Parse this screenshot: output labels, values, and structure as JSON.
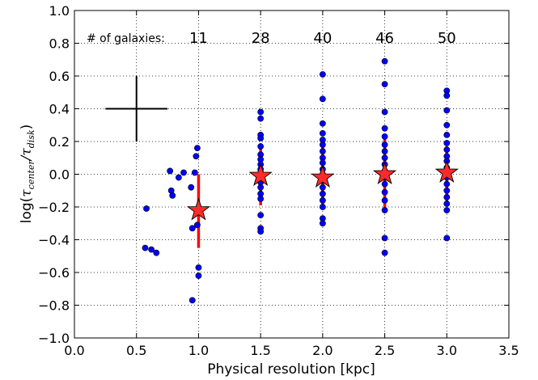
{
  "chart_data": {
    "type": "scatter",
    "xlabel": "Physical resolution [kpc]",
    "ylabel": {
      "prefix": "log(",
      "tau1": "τ",
      "sub1": "center",
      "slash": "/",
      "tau2": "τ",
      "sub2": "disk",
      "suffix": ")"
    },
    "xlim": [
      0.0,
      3.5
    ],
    "ylim": [
      -1.0,
      1.0
    ],
    "x_ticks": [
      "0.0",
      "0.5",
      "1.0",
      "1.5",
      "2.0",
      "2.5",
      "3.0",
      "3.5"
    ],
    "y_ticks": [
      "−1.0",
      "−0.8",
      "−0.6",
      "−0.4",
      "−0.2",
      "0.0",
      "0.2",
      "0.4",
      "0.6",
      "0.8",
      "1.0"
    ],
    "grid": true,
    "grid_style": "dotted",
    "galaxy_count_label": "# of galaxies:",
    "galaxy_counts": [
      {
        "x": 1.0,
        "count": "11"
      },
      {
        "x": 1.5,
        "count": "28"
      },
      {
        "x": 2.0,
        "count": "40"
      },
      {
        "x": 2.5,
        "count": "46"
      },
      {
        "x": 3.0,
        "count": "50"
      }
    ],
    "individual_points": [
      {
        "x": 0.58,
        "y": -0.21
      },
      {
        "x": 0.57,
        "y": -0.45
      },
      {
        "x": 0.62,
        "y": -0.46
      },
      {
        "x": 0.66,
        "y": -0.48
      },
      {
        "x": 0.77,
        "y": 0.02
      },
      {
        "x": 0.78,
        "y": -0.1
      },
      {
        "x": 0.79,
        "y": -0.13
      },
      {
        "x": 0.84,
        "y": -0.02
      },
      {
        "x": 0.88,
        "y": 0.01
      },
      {
        "x": 0.94,
        "y": -0.08
      },
      {
        "x": 0.95,
        "y": -0.33
      },
      {
        "x": 0.95,
        "y": -0.77
      },
      {
        "x": 0.97,
        "y": 0.01
      },
      {
        "x": 0.98,
        "y": 0.11
      },
      {
        "x": 0.99,
        "y": 0.16
      },
      {
        "x": 0.99,
        "y": -0.31
      },
      {
        "x": 1.0,
        "y": -0.57
      },
      {
        "x": 1.0,
        "y": -0.62
      },
      {
        "x": 1.5,
        "y": 0.38
      },
      {
        "x": 1.5,
        "y": 0.34
      },
      {
        "x": 1.5,
        "y": 0.24
      },
      {
        "x": 1.5,
        "y": 0.22
      },
      {
        "x": 1.5,
        "y": 0.17
      },
      {
        "x": 1.5,
        "y": 0.12
      },
      {
        "x": 1.5,
        "y": 0.09
      },
      {
        "x": 1.5,
        "y": 0.06
      },
      {
        "x": 1.5,
        "y": 0.03
      },
      {
        "x": 1.5,
        "y": 0.01
      },
      {
        "x": 1.5,
        "y": -0.02
      },
      {
        "x": 1.5,
        "y": -0.05
      },
      {
        "x": 1.5,
        "y": -0.08
      },
      {
        "x": 1.5,
        "y": -0.12
      },
      {
        "x": 1.5,
        "y": -0.15
      },
      {
        "x": 1.5,
        "y": -0.25
      },
      {
        "x": 1.5,
        "y": -0.33
      },
      {
        "x": 1.5,
        "y": -0.35
      },
      {
        "x": 2.0,
        "y": 0.61
      },
      {
        "x": 2.0,
        "y": 0.46
      },
      {
        "x": 2.0,
        "y": 0.31
      },
      {
        "x": 2.0,
        "y": 0.25
      },
      {
        "x": 2.0,
        "y": 0.21
      },
      {
        "x": 2.0,
        "y": 0.18
      },
      {
        "x": 2.0,
        "y": 0.14
      },
      {
        "x": 2.0,
        "y": 0.1
      },
      {
        "x": 2.0,
        "y": 0.07
      },
      {
        "x": 2.0,
        "y": 0.03
      },
      {
        "x": 2.0,
        "y": 0.0
      },
      {
        "x": 2.0,
        "y": -0.04
      },
      {
        "x": 2.0,
        "y": -0.08
      },
      {
        "x": 2.0,
        "y": -0.12
      },
      {
        "x": 2.0,
        "y": -0.16
      },
      {
        "x": 2.0,
        "y": -0.2
      },
      {
        "x": 2.0,
        "y": -0.27
      },
      {
        "x": 2.0,
        "y": -0.3
      },
      {
        "x": 2.5,
        "y": 0.69
      },
      {
        "x": 2.5,
        "y": 0.55
      },
      {
        "x": 2.5,
        "y": 0.38
      },
      {
        "x": 2.5,
        "y": 0.28
      },
      {
        "x": 2.5,
        "y": 0.23
      },
      {
        "x": 2.5,
        "y": 0.18
      },
      {
        "x": 2.5,
        "y": 0.14
      },
      {
        "x": 2.5,
        "y": 0.1
      },
      {
        "x": 2.5,
        "y": 0.06
      },
      {
        "x": 2.5,
        "y": 0.02
      },
      {
        "x": 2.5,
        "y": -0.02
      },
      {
        "x": 2.5,
        "y": -0.06
      },
      {
        "x": 2.5,
        "y": -0.11
      },
      {
        "x": 2.5,
        "y": -0.16
      },
      {
        "x": 2.5,
        "y": -0.22
      },
      {
        "x": 2.5,
        "y": -0.39
      },
      {
        "x": 2.5,
        "y": -0.48
      },
      {
        "x": 3.0,
        "y": 0.51
      },
      {
        "x": 3.0,
        "y": 0.48
      },
      {
        "x": 3.0,
        "y": 0.39
      },
      {
        "x": 3.0,
        "y": 0.3
      },
      {
        "x": 3.0,
        "y": 0.24
      },
      {
        "x": 3.0,
        "y": 0.19
      },
      {
        "x": 3.0,
        "y": 0.15
      },
      {
        "x": 3.0,
        "y": 0.11
      },
      {
        "x": 3.0,
        "y": 0.08
      },
      {
        "x": 3.0,
        "y": 0.04
      },
      {
        "x": 3.0,
        "y": 0.01
      },
      {
        "x": 3.0,
        "y": -0.02
      },
      {
        "x": 3.0,
        "y": -0.06
      },
      {
        "x": 3.0,
        "y": -0.1
      },
      {
        "x": 3.0,
        "y": -0.14
      },
      {
        "x": 3.0,
        "y": -0.18
      },
      {
        "x": 3.0,
        "y": -0.22
      },
      {
        "x": 3.0,
        "y": -0.39
      }
    ],
    "medians": [
      {
        "x": 1.0,
        "y": -0.22,
        "err_low": -0.45,
        "err_high": 0.0
      },
      {
        "x": 1.5,
        "y": -0.01,
        "err_low": -0.19,
        "err_high": 0.17
      },
      {
        "x": 2.0,
        "y": -0.02,
        "err_low": -0.21,
        "err_high": 0.17
      },
      {
        "x": 2.5,
        "y": 0.0,
        "err_low": -0.22,
        "err_high": 0.22
      },
      {
        "x": 3.0,
        "y": 0.01,
        "err_low": -0.18,
        "err_high": 0.17
      }
    ],
    "typical_error_cross": {
      "x": 0.5,
      "y": 0.4,
      "x_err": 0.25,
      "y_err": 0.2
    },
    "colors": {
      "points": "#0000ff",
      "point_edge": "#000000",
      "median_star": "#ff2a2a",
      "errorbar": "#ff0000",
      "cross": "#000000",
      "grid": "#000000"
    }
  }
}
